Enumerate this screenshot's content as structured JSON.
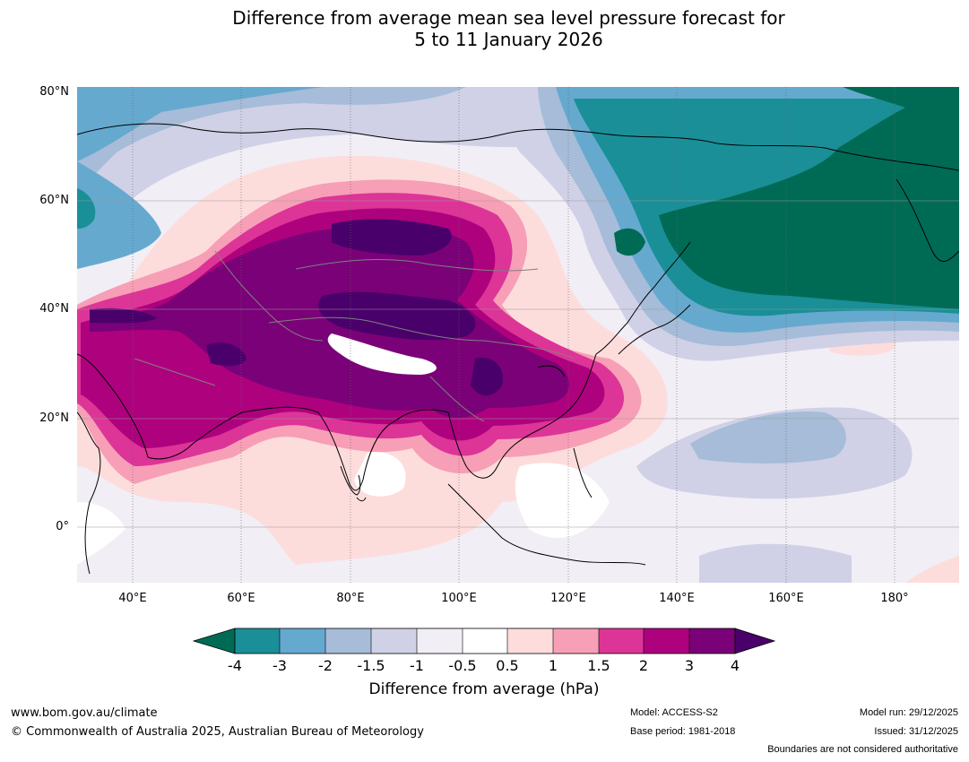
{
  "title": {
    "line1": "Difference from average mean sea level pressure forecast for",
    "line2": "5 to 11 January 2026"
  },
  "map": {
    "lat_labels": [
      "80°N",
      "60°N",
      "40°N",
      "20°N",
      "0°"
    ],
    "lon_labels": [
      "40°E",
      "60°E",
      "80°E",
      "100°E",
      "120°E",
      "140°E",
      "160°E",
      "180°"
    ],
    "lat_values": [
      80,
      60,
      40,
      20,
      0
    ],
    "lon_values": [
      40,
      60,
      80,
      100,
      120,
      140,
      160,
      180
    ],
    "extent": {
      "lon_min": 30,
      "lon_max": 192,
      "lat_min": -10,
      "lat_max": 81
    },
    "land_outline_color": "#000000",
    "border_color": "#808080"
  },
  "colorbar": {
    "title": "Difference from average (hPa)",
    "tick_labels": [
      "-4",
      "-3",
      "-2",
      "-1.5",
      "-1",
      "-0.5",
      "0.5",
      "1",
      "1.5",
      "2",
      "3",
      "4"
    ],
    "colors": {
      "below_-4": "#006b55",
      "-4_-3": "#1a8f98",
      "-3_-2": "#66a9cf",
      "-2_-1.5": "#a6bcd8",
      "-1.5_-1": "#d0d1e6",
      "-1_-0.5": "#f1eef6",
      "-0.5_0.5": "#ffffff",
      "0.5_1": "#fddddc",
      "1_1.5": "#f79fb7",
      "1.5_2": "#dd3497",
      "2_3": "#ae017e",
      "3_4": "#7a0177",
      "above_4": "#49006a"
    }
  },
  "footer": {
    "website": "www.bom.gov.au/climate",
    "copyright": "© Commonwealth of Australia 2025, Australian Bureau of Meteorology",
    "model": "Model: ACCESS-S2",
    "base_period": "Base period: 1981-2018",
    "model_run": "Model run: 29/12/2025",
    "issued": "Issued: 31/12/2025",
    "disclaimer": "Boundaries are not considered authoritative"
  }
}
